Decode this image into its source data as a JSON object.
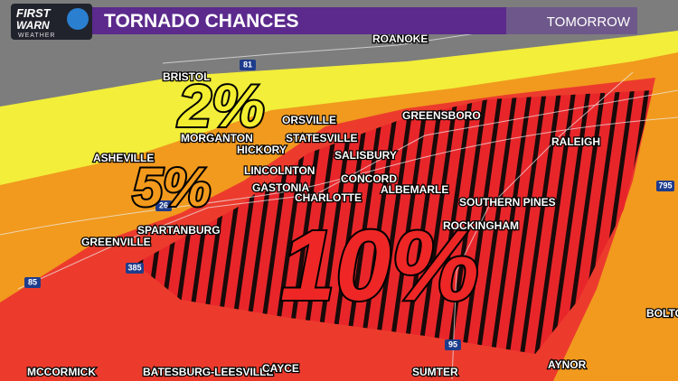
{
  "header": {
    "logo": {
      "line1": "FIRST",
      "line2": "WARN",
      "line3": "WEATHER"
    },
    "title": "TORNADO CHANCES",
    "subtitle": "TOMORROW"
  },
  "risk_labels": [
    "2%",
    "5%",
    "10%"
  ],
  "cities": [
    "ROANOKE",
    "BRISTOL",
    "ORSVILLE",
    "MORGANTON",
    "GREENSBORO",
    "STATESVILLE",
    "HICKORY",
    "RALEIGH",
    "ASHEVILLE",
    "SALISBURY",
    "LINCOLNTON",
    "CONCORD",
    "GASTONIA",
    "ALBEMARLE",
    "CHARLOTTE",
    "SOUTHERN PINES",
    "SPARTANBURG",
    "GREENVILLE",
    "ROCKINGHAM",
    "MCCORMICK",
    "BATESBURG-LEESVILLE",
    "CAYCE",
    "SUMTER",
    "AYNOR",
    "BOLTO"
  ],
  "highways": [
    "81",
    "26",
    "385",
    "85",
    "95",
    "795"
  ]
}
